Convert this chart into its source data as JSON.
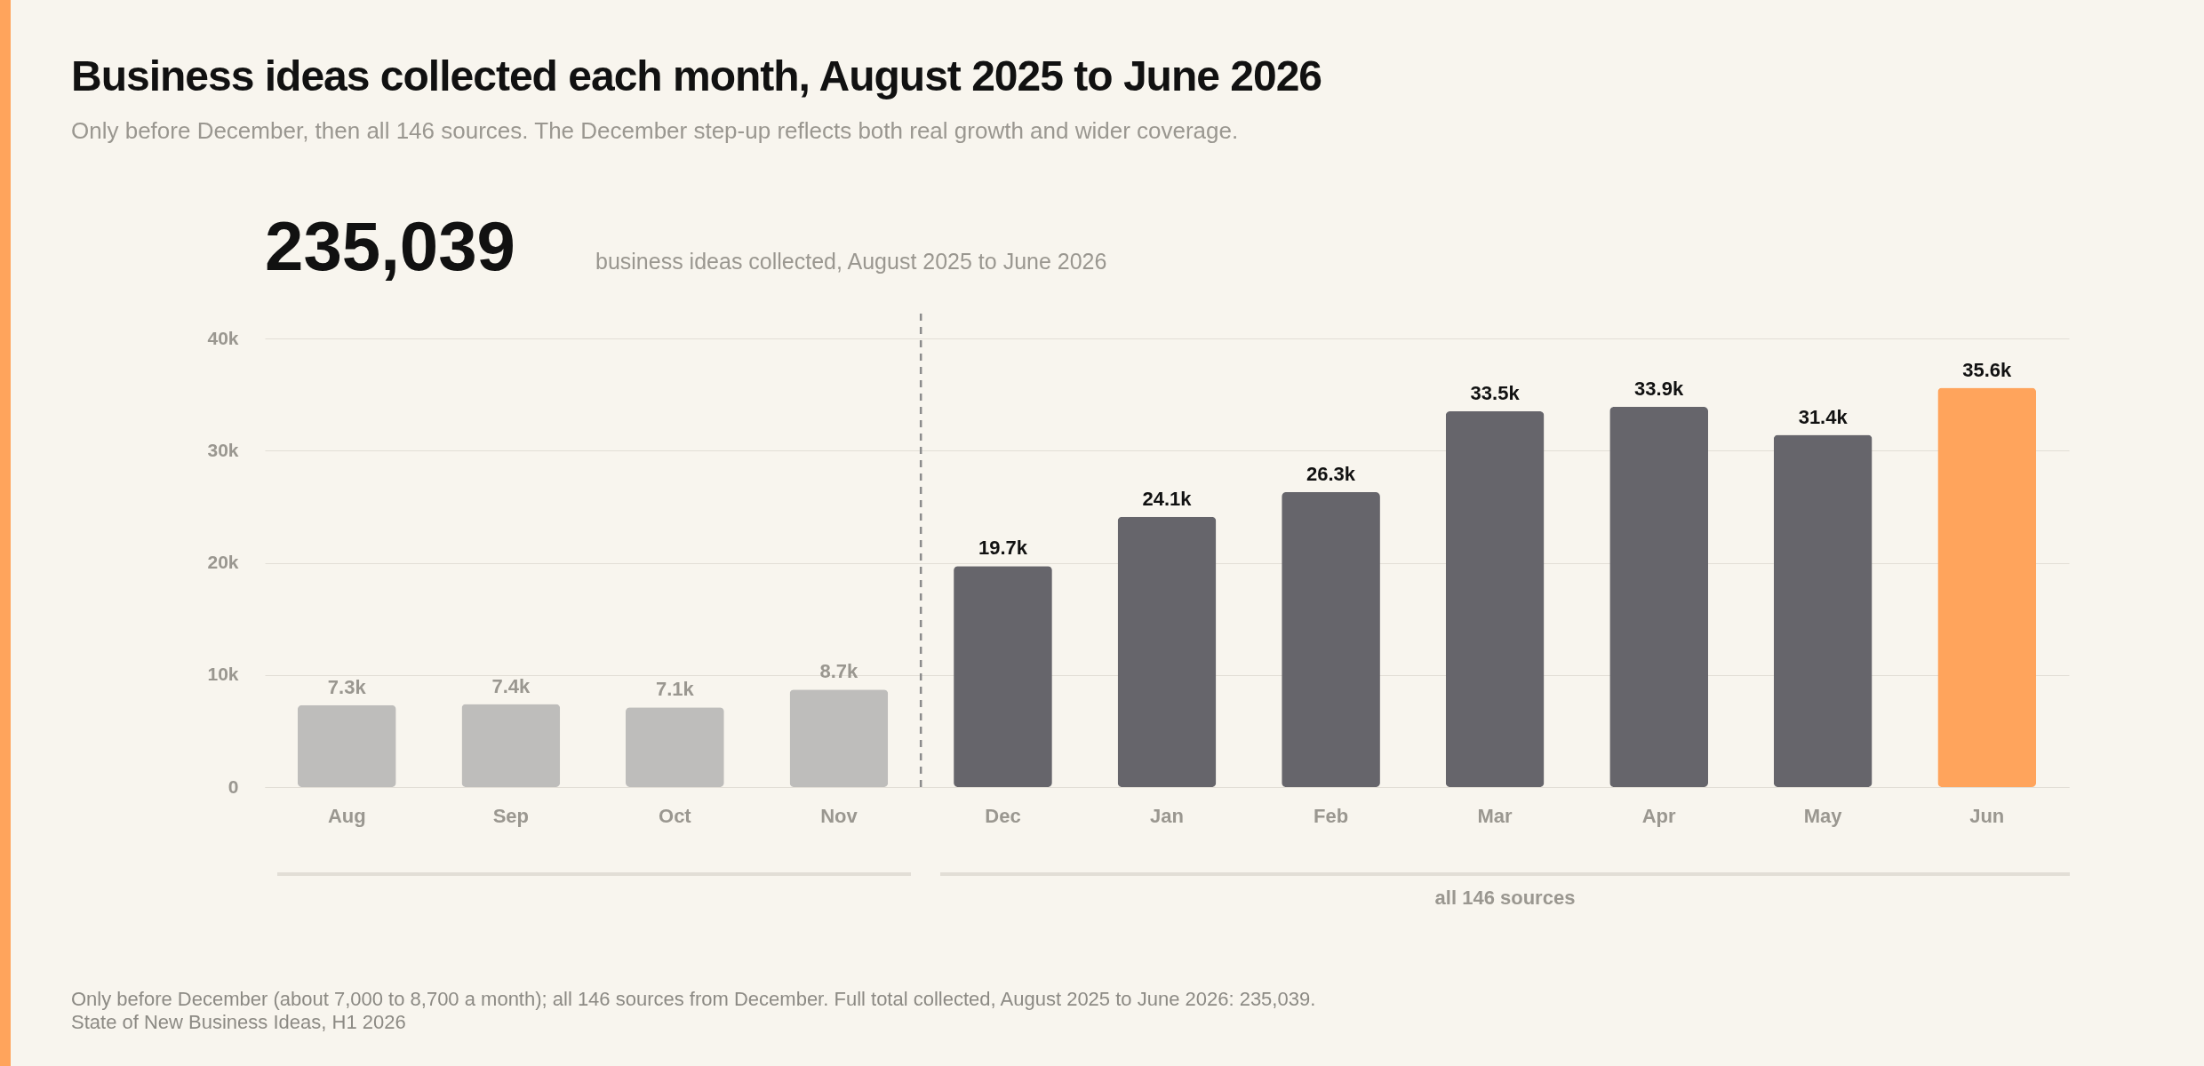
{
  "chart_data": {
    "type": "bar",
    "title": "Business ideas collected each month, August 2025 to June 2026",
    "subtitle": "Only before December, then all 146 sources. The December step-up reflects both real growth and wider coverage.",
    "annotations": [
      "235,039",
      "business ideas collected, August 2025 to June 2026",
      "all 146 sources",
      "Only before December (about 7,000 to 8,700 a month); all 146 sources from December. Full total collected, August 2025 to June 2026: 235,039.",
      "State of New Business Ideas, H1 2026"
    ],
    "categories": [
      "Aug",
      "Sep",
      "Oct",
      "Nov",
      "Dec",
      "Jan",
      "Feb",
      "Mar",
      "Apr",
      "May",
      "Jun"
    ],
    "values": [
      7300,
      7400,
      7100,
      8700,
      19700,
      24100,
      26300,
      33500,
      33900,
      31400,
      35600
    ],
    "value_labels": [
      "7.3k",
      "7.4k",
      "7.1k",
      "8.7k",
      "19.7k",
      "24.1k",
      "26.3k",
      "33.5k",
      "33.9k",
      "31.4k",
      "35.6k"
    ],
    "colors": [
      "#bebdbb",
      "#bebdbb",
      "#bebdbb",
      "#bebdbb",
      "#66656b",
      "#66656b",
      "#66656b",
      "#66656b",
      "#66656b",
      "#66656b",
      "#ffa45c"
    ],
    "ylim": [
      0,
      40000
    ],
    "yticks": [
      0,
      {
        "value": 10000,
        "label": "10k"
      },
      {
        "value": 20000,
        "label": "20k"
      },
      {
        "value": 30000,
        "label": "30k"
      },
      {
        "value": 40000,
        "label": "40k"
      }
    ],
    "grid": "y",
    "ref_lines": [
      {
        "axis": "x",
        "value": "Dec",
        "line_style": "dashed",
        "color": "#8c8c8c"
      }
    ]
  }
}
